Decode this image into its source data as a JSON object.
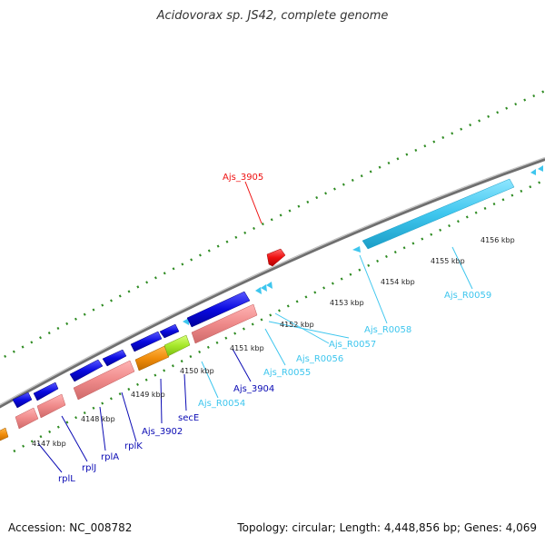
{
  "title": "Acidovorax sp. JS42, complete genome",
  "footer": {
    "accession": "Accession: NC_008782",
    "summary": "Topology: circular; Length: 4,448,856 bp; Genes: 4,069"
  },
  "colors": {
    "backbone": "#7a7a7a",
    "dots": "#2e8b22",
    "cds": "#0a0ae0",
    "rna": "#3ec6ee",
    "pink": "#ef8a8a",
    "orange": "#f08c0a",
    "lime": "#a6e82a",
    "red": "#ee1111"
  },
  "positions": [
    {
      "label": "4147 kbp",
      "name": "tick-4147kbp"
    },
    {
      "label": "4148 kbp",
      "name": "tick-4148kbp"
    },
    {
      "label": "4149 kbp",
      "name": "tick-4149kbp"
    },
    {
      "label": "4150 kbp",
      "name": "tick-4150kbp"
    },
    {
      "label": "4151 kbp",
      "name": "tick-4151kbp"
    },
    {
      "label": "4152 kbp",
      "name": "tick-4152kbp"
    },
    {
      "label": "4153 kbp",
      "name": "tick-4153kbp"
    },
    {
      "label": "4154 kbp",
      "name": "tick-4154kbp"
    },
    {
      "label": "4155 kbp",
      "name": "tick-4155kbp"
    },
    {
      "label": "4156 kbp",
      "name": "tick-4156kbp"
    }
  ],
  "gene_labels": [
    {
      "text": "rplL",
      "color": "#0a0ab4",
      "name": "gene-label-rplL"
    },
    {
      "text": "rplJ",
      "color": "#0a0ab4",
      "name": "gene-label-rplJ"
    },
    {
      "text": "rplA",
      "color": "#0a0ab4",
      "name": "gene-label-rplA"
    },
    {
      "text": "rplK",
      "color": "#0a0ab4",
      "name": "gene-label-rplK"
    },
    {
      "text": "Ajs_3902",
      "color": "#0a0ab4",
      "name": "gene-label-ajs-3902"
    },
    {
      "text": "secE",
      "color": "#0a0ab4",
      "name": "gene-label-secE"
    },
    {
      "text": "Ajs_R0054",
      "color": "#3ec6ee",
      "name": "gene-label-ajs-r0054"
    },
    {
      "text": "Ajs_3904",
      "color": "#0a0ab4",
      "name": "gene-label-ajs-3904"
    },
    {
      "text": "Ajs_R0055",
      "color": "#3ec6ee",
      "name": "gene-label-ajs-r0055"
    },
    {
      "text": "Ajs_R0056",
      "color": "#3ec6ee",
      "name": "gene-label-ajs-r0056"
    },
    {
      "text": "Ajs_R0057",
      "color": "#3ec6ee",
      "name": "gene-label-ajs-r0057"
    },
    {
      "text": "Ajs_R0058",
      "color": "#3ec6ee",
      "name": "gene-label-ajs-r0058"
    },
    {
      "text": "Ajs_R0059",
      "color": "#3ec6ee",
      "name": "gene-label-ajs-r0059"
    },
    {
      "text": "Ajs_3905",
      "color": "#ee1111",
      "name": "gene-label-ajs-3905"
    }
  ]
}
